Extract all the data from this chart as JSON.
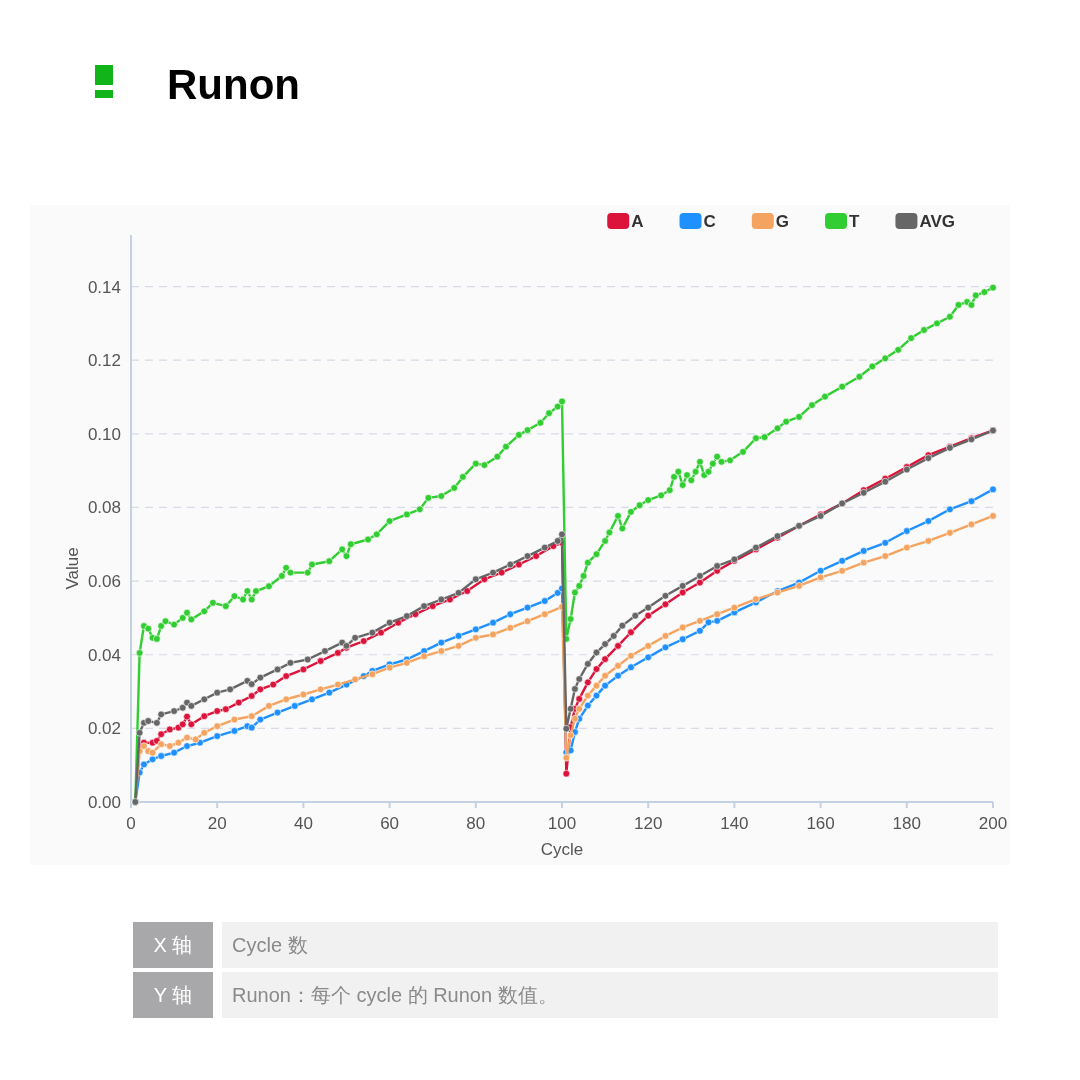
{
  "chart_data": {
    "type": "line",
    "title": "Runon",
    "xlabel": "Cycle",
    "ylabel": "Value",
    "xlim": [
      0,
      200
    ],
    "xticks": [
      0,
      20,
      40,
      60,
      80,
      100,
      120,
      140,
      160,
      180,
      200
    ],
    "ylim": [
      0,
      0.154
    ],
    "yticks": [
      {
        "value": 0,
        "label": "0.00"
      },
      0.02,
      0.04,
      0.06,
      0.08,
      {
        "value": 0.1,
        "label": "0.10"
      },
      0.12,
      0.14
    ],
    "grid": "y",
    "legend": "top right",
    "marker": "circle",
    "line_style": "solid",
    "series": [
      {
        "name": "A",
        "color": "#dc143c",
        "x": [
          1,
          2,
          3,
          5,
          6,
          7,
          9,
          11,
          12,
          13,
          14,
          17,
          20,
          22,
          25,
          28,
          30,
          33,
          36,
          40,
          44,
          48,
          50,
          54,
          58,
          62,
          66,
          70,
          74,
          78,
          82,
          86,
          90,
          94,
          98,
          100,
          101,
          102,
          103,
          104,
          106,
          108,
          110,
          113,
          116,
          120,
          124,
          128,
          132,
          136,
          140,
          145,
          150,
          155,
          160,
          165,
          170,
          175,
          180,
          185,
          190,
          195,
          200
        ],
        "values": [
          0,
          0.0152,
          0.0161,
          0.0161,
          0.0166,
          0.0184,
          0.0197,
          0.0202,
          0.0211,
          0.0232,
          0.0211,
          0.0233,
          0.0247,
          0.0252,
          0.027,
          0.0288,
          0.0306,
          0.0319,
          0.0342,
          0.036,
          0.0383,
          0.0405,
          0.0419,
          0.0437,
          0.046,
          0.0487,
          0.051,
          0.0532,
          0.055,
          0.0573,
          0.0605,
          0.0623,
          0.0645,
          0.0668,
          0.0695,
          0.0704,
          0.0077,
          0.0203,
          0.0253,
          0.028,
          0.0325,
          0.0361,
          0.0388,
          0.0424,
          0.0461,
          0.0506,
          0.0537,
          0.0569,
          0.0596,
          0.0628,
          0.0655,
          0.0686,
          0.0718,
          0.075,
          0.0781,
          0.0811,
          0.0847,
          0.0878,
          0.091,
          0.0942,
          0.0965,
          0.0988,
          0.1009
        ]
      },
      {
        "name": "C",
        "color": "#1e90ff",
        "x": [
          1,
          2,
          3,
          5,
          7,
          10,
          13,
          16,
          20,
          24,
          27,
          28,
          30,
          34,
          38,
          42,
          46,
          50,
          54,
          56,
          60,
          64,
          68,
          72,
          76,
          80,
          84,
          88,
          92,
          96,
          99,
          100,
          101,
          102,
          103,
          104,
          106,
          108,
          110,
          113,
          116,
          120,
          124,
          128,
          132,
          134,
          136,
          140,
          145,
          150,
          155,
          160,
          165,
          170,
          175,
          180,
          185,
          190,
          195,
          200
        ],
        "values": [
          0,
          0.008,
          0.0102,
          0.0116,
          0.0125,
          0.0134,
          0.0152,
          0.0161,
          0.0179,
          0.0193,
          0.0206,
          0.0202,
          0.0224,
          0.0243,
          0.0261,
          0.0279,
          0.0297,
          0.0319,
          0.0342,
          0.0356,
          0.0374,
          0.0387,
          0.041,
          0.0433,
          0.0451,
          0.0469,
          0.0487,
          0.051,
          0.0528,
          0.0546,
          0.0568,
          0.058,
          0.0135,
          0.014,
          0.019,
          0.0226,
          0.0262,
          0.0289,
          0.0316,
          0.0343,
          0.0366,
          0.0393,
          0.042,
          0.0442,
          0.0465,
          0.0488,
          0.0492,
          0.0515,
          0.0542,
          0.0573,
          0.0596,
          0.0628,
          0.0655,
          0.0682,
          0.0704,
          0.0736,
          0.0763,
          0.0795,
          0.0817,
          0.0849
        ]
      },
      {
        "name": "G",
        "color": "#f4a460",
        "x": [
          1,
          2,
          3,
          4,
          5,
          7,
          9,
          11,
          13,
          15,
          17,
          20,
          24,
          28,
          32,
          36,
          40,
          44,
          48,
          52,
          56,
          60,
          64,
          68,
          72,
          76,
          80,
          84,
          88,
          92,
          96,
          100,
          101,
          102,
          103,
          104,
          106,
          108,
          110,
          113,
          116,
          120,
          124,
          128,
          132,
          136,
          140,
          145,
          150,
          155,
          160,
          165,
          170,
          175,
          180,
          185,
          190,
          195,
          200
        ],
        "values": [
          0,
          0.0138,
          0.0152,
          0.0138,
          0.0134,
          0.0157,
          0.0152,
          0.0161,
          0.0175,
          0.017,
          0.0188,
          0.0206,
          0.0224,
          0.0233,
          0.0261,
          0.0279,
          0.0292,
          0.0306,
          0.0319,
          0.0333,
          0.0347,
          0.0365,
          0.0378,
          0.0396,
          0.041,
          0.0424,
          0.0446,
          0.0455,
          0.0473,
          0.0491,
          0.051,
          0.053,
          0.012,
          0.0181,
          0.0226,
          0.0253,
          0.0289,
          0.0316,
          0.0343,
          0.037,
          0.0397,
          0.0424,
          0.0451,
          0.0474,
          0.0492,
          0.051,
          0.0528,
          0.0551,
          0.0569,
          0.0587,
          0.061,
          0.0628,
          0.065,
          0.0668,
          0.0691,
          0.0709,
          0.0731,
          0.0754,
          0.0777
        ]
      },
      {
        "name": "T",
        "color": "#32cd32",
        "x": [
          1,
          2,
          3,
          4,
          5,
          6,
          7,
          8,
          10,
          12,
          13,
          14,
          17,
          19,
          22,
          24,
          26,
          27,
          28,
          29,
          32,
          35,
          36,
          37,
          41,
          42,
          46,
          49,
          50,
          51,
          55,
          57,
          60,
          64,
          67,
          69,
          72,
          75,
          77,
          80,
          82,
          85,
          87,
          90,
          92,
          95,
          97,
          99,
          100,
          101,
          102,
          103,
          104,
          105,
          106,
          108,
          110,
          111,
          113,
          114,
          116,
          118,
          120,
          123,
          125,
          126,
          127,
          128,
          129,
          130,
          131,
          132,
          133,
          134,
          135,
          136,
          137,
          139,
          142,
          145,
          147,
          150,
          152,
          155,
          158,
          161,
          165,
          169,
          172,
          175,
          178,
          181,
          184,
          187,
          190,
          192,
          194,
          195,
          196,
          198,
          200
        ],
        "values": [
          0,
          0.0405,
          0.0478,
          0.0471,
          0.0446,
          0.0443,
          0.0478,
          0.0491,
          0.0482,
          0.05,
          0.0514,
          0.0496,
          0.0518,
          0.0541,
          0.0532,
          0.0559,
          0.055,
          0.0573,
          0.055,
          0.0573,
          0.0586,
          0.0614,
          0.0636,
          0.0623,
          0.0623,
          0.0645,
          0.0654,
          0.0686,
          0.0668,
          0.07,
          0.0713,
          0.0727,
          0.0763,
          0.0781,
          0.0795,
          0.0826,
          0.0831,
          0.0853,
          0.0883,
          0.0919,
          0.0915,
          0.0938,
          0.0965,
          0.0997,
          0.101,
          0.103,
          0.1056,
          0.1074,
          0.1088,
          0.0443,
          0.0497,
          0.0569,
          0.0587,
          0.0614,
          0.065,
          0.0673,
          0.0709,
          0.0732,
          0.0777,
          0.0743,
          0.0788,
          0.0806,
          0.082,
          0.0833,
          0.0847,
          0.0883,
          0.0897,
          0.0861,
          0.0888,
          0.0874,
          0.0897,
          0.0924,
          0.0888,
          0.0897,
          0.0919,
          0.0938,
          0.0924,
          0.0928,
          0.0951,
          0.0988,
          0.0991,
          0.1015,
          0.1033,
          0.1046,
          0.1078,
          0.1101,
          0.1128,
          0.1155,
          0.1183,
          0.1205,
          0.1228,
          0.126,
          0.1282,
          0.13,
          0.1318,
          0.135,
          0.1358,
          0.135,
          0.1376,
          0.1385,
          0.1397
        ]
      },
      {
        "name": "AVG",
        "color": "#666666",
        "x": [
          1,
          2,
          3,
          4,
          6,
          7,
          10,
          12,
          13,
          14,
          17,
          20,
          23,
          27,
          28,
          30,
          34,
          37,
          41,
          45,
          49,
          50,
          52,
          56,
          60,
          64,
          68,
          72,
          76,
          80,
          84,
          88,
          92,
          96,
          99,
          100,
          101,
          102,
          103,
          104,
          106,
          108,
          110,
          112,
          114,
          117,
          120,
          124,
          128,
          132,
          136,
          140,
          145,
          150,
          155,
          160,
          165,
          170,
          175,
          180,
          185,
          190,
          195,
          200
        ],
        "values": [
          0,
          0.0188,
          0.0215,
          0.022,
          0.0215,
          0.0238,
          0.0247,
          0.0256,
          0.027,
          0.0261,
          0.0279,
          0.0297,
          0.0306,
          0.0329,
          0.032,
          0.0338,
          0.036,
          0.0378,
          0.0387,
          0.041,
          0.0433,
          0.0424,
          0.0446,
          0.046,
          0.0487,
          0.0505,
          0.0532,
          0.055,
          0.0568,
          0.0605,
          0.0623,
          0.0645,
          0.0668,
          0.0691,
          0.0709,
          0.0727,
          0.0199,
          0.0253,
          0.0307,
          0.0334,
          0.0375,
          0.0406,
          0.0429,
          0.0451,
          0.0479,
          0.0506,
          0.0528,
          0.056,
          0.0587,
          0.0614,
          0.0641,
          0.0659,
          0.0691,
          0.0722,
          0.075,
          0.0777,
          0.0811,
          0.084,
          0.087,
          0.0903,
          0.0934,
          0.0962,
          0.0985,
          0.1009
        ]
      }
    ],
    "annotations": [
      "X 轴",
      "Cycle 数",
      "Y 轴",
      "Runon：每个 cycle 的 Runon 数值。"
    ]
  }
}
